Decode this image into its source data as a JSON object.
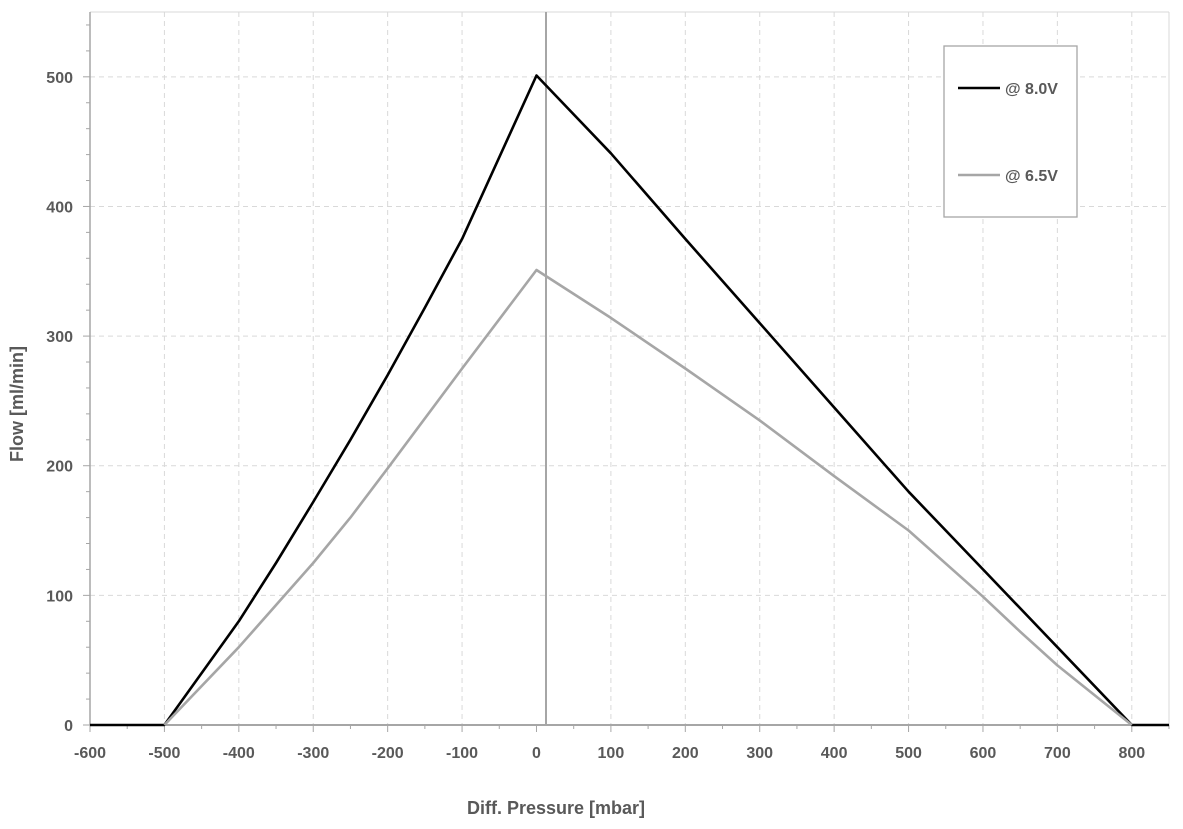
{
  "chart_data": {
    "type": "line",
    "title": "",
    "xlabel": "Diff. Pressure [mbar]",
    "ylabel": "Flow [ml/min]",
    "xlim": [
      -600,
      850
    ],
    "ylim": [
      0,
      550
    ],
    "x_ticks": [
      -600,
      -500,
      -400,
      -300,
      -200,
      -100,
      0,
      100,
      200,
      300,
      400,
      500,
      600,
      700,
      800
    ],
    "y_ticks": [
      0,
      100,
      200,
      300,
      400,
      500
    ],
    "grid": true,
    "legend_position": "top-right",
    "series": [
      {
        "name": "@ 8.0V",
        "color": "#000000",
        "x": [
          -600,
          -500,
          -400,
          -350,
          -300,
          -250,
          -200,
          -150,
          -100,
          0,
          100,
          200,
          300,
          400,
          500,
          600,
          700,
          800,
          850
        ],
        "y": [
          0,
          0,
          80,
          125,
          172,
          220,
          270,
          322,
          375,
          501,
          441,
          375,
          310,
          245,
          180,
          120,
          60,
          0,
          0
        ]
      },
      {
        "name": "@ 6.5V",
        "color": "#a6a6a6",
        "x": [
          -500,
          -400,
          -300,
          -250,
          -200,
          -100,
          0,
          100,
          200,
          300,
          400,
          500,
          600,
          650,
          700,
          800
        ],
        "y": [
          0,
          60,
          125,
          160,
          198,
          275,
          351,
          314,
          275,
          235,
          192,
          150,
          99,
          72,
          46,
          0
        ]
      }
    ]
  }
}
